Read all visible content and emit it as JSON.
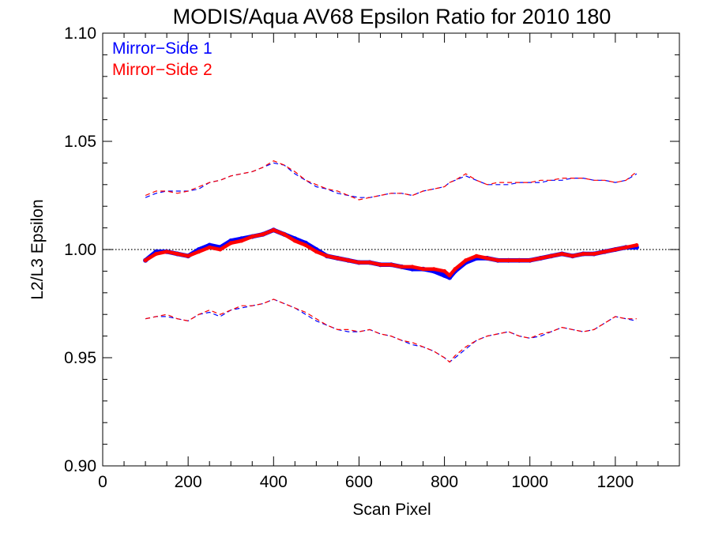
{
  "colors": {
    "mirror_side_1": "#0000ff",
    "mirror_side_2": "#ff0000",
    "axes": "#000000",
    "reference_line": "#000000"
  },
  "chart_data": {
    "type": "line",
    "title": "MODIS/Aqua AV68 Epsilon Ratio for 2010 180",
    "xlabel": "Scan Pixel",
    "ylabel": "L2/L3 Epsilon",
    "xlim": [
      0,
      1350
    ],
    "ylim": [
      0.9,
      1.1
    ],
    "xticks": [
      0,
      200,
      400,
      600,
      800,
      1000,
      1200
    ],
    "xtick_labels": [
      "0",
      "200",
      "400",
      "600",
      "800",
      "1000",
      "1200"
    ],
    "yticks": [
      0.9,
      0.95,
      1.0,
      1.05,
      1.1
    ],
    "ytick_labels": [
      "0.90",
      "0.95",
      "1.00",
      "1.05",
      "1.10"
    ],
    "reference_line": {
      "y": 1.0,
      "style": "dotted"
    },
    "legend": {
      "placement": "top-left",
      "entries": [
        "Mirror−Side 1",
        "Mirror−Side 2"
      ]
    },
    "x": [
      100,
      125,
      150,
      175,
      200,
      225,
      250,
      275,
      300,
      325,
      350,
      375,
      400,
      425,
      450,
      475,
      500,
      525,
      550,
      575,
      600,
      625,
      650,
      675,
      700,
      725,
      750,
      775,
      800,
      812,
      825,
      850,
      875,
      900,
      925,
      950,
      975,
      1000,
      1025,
      1050,
      1075,
      1100,
      1125,
      1150,
      1175,
      1200,
      1225,
      1250
    ],
    "series": [
      {
        "name": "Mirror−Side 1",
        "color": "#0000ff",
        "mean": [
          0.995,
          0.999,
          0.999,
          0.998,
          0.997,
          1.0,
          1.002,
          1.001,
          1.004,
          1.005,
          1.006,
          1.007,
          1.009,
          1.007,
          1.005,
          1.003,
          1.0,
          0.997,
          0.996,
          0.995,
          0.994,
          0.994,
          0.993,
          0.993,
          0.992,
          0.991,
          0.991,
          0.99,
          0.988,
          0.987,
          0.99,
          0.994,
          0.996,
          0.996,
          0.995,
          0.995,
          0.995,
          0.995,
          0.996,
          0.997,
          0.998,
          0.997,
          0.998,
          0.998,
          0.999,
          1.0,
          1.001,
          1.001
        ],
        "upper": [
          1.024,
          1.026,
          1.027,
          1.027,
          1.027,
          1.028,
          1.031,
          1.032,
          1.034,
          1.035,
          1.036,
          1.038,
          1.04,
          1.039,
          1.035,
          1.032,
          1.029,
          1.028,
          1.026,
          1.025,
          1.024,
          1.024,
          1.025,
          1.026,
          1.026,
          1.025,
          1.027,
          1.028,
          1.029,
          1.031,
          1.032,
          1.034,
          1.032,
          1.03,
          1.03,
          1.03,
          1.031,
          1.031,
          1.031,
          1.032,
          1.032,
          1.033,
          1.033,
          1.032,
          1.032,
          1.031,
          1.032,
          1.035
        ],
        "lower": [
          0.968,
          0.969,
          0.969,
          0.968,
          0.967,
          0.97,
          0.971,
          0.969,
          0.972,
          0.973,
          0.974,
          0.975,
          0.977,
          0.975,
          0.973,
          0.97,
          0.967,
          0.965,
          0.963,
          0.962,
          0.962,
          0.963,
          0.961,
          0.96,
          0.958,
          0.956,
          0.955,
          0.953,
          0.95,
          0.948,
          0.95,
          0.954,
          0.958,
          0.96,
          0.961,
          0.962,
          0.96,
          0.959,
          0.96,
          0.962,
          0.964,
          0.963,
          0.962,
          0.963,
          0.966,
          0.969,
          0.968,
          0.967
        ]
      },
      {
        "name": "Mirror−Side 2",
        "color": "#ff0000",
        "mean": [
          0.995,
          0.998,
          0.999,
          0.998,
          0.997,
          0.999,
          1.001,
          1.0,
          1.003,
          1.004,
          1.006,
          1.007,
          1.009,
          1.007,
          1.004,
          1.002,
          0.999,
          0.997,
          0.996,
          0.995,
          0.994,
          0.994,
          0.993,
          0.993,
          0.992,
          0.992,
          0.991,
          0.991,
          0.99,
          0.988,
          0.991,
          0.995,
          0.997,
          0.996,
          0.995,
          0.995,
          0.995,
          0.995,
          0.996,
          0.997,
          0.998,
          0.997,
          0.998,
          0.998,
          0.999,
          1.0,
          1.001,
          1.002
        ],
        "upper": [
          1.025,
          1.027,
          1.027,
          1.026,
          1.027,
          1.029,
          1.031,
          1.032,
          1.034,
          1.035,
          1.036,
          1.038,
          1.041,
          1.039,
          1.036,
          1.032,
          1.03,
          1.028,
          1.027,
          1.025,
          1.023,
          1.024,
          1.025,
          1.026,
          1.026,
          1.025,
          1.027,
          1.028,
          1.029,
          1.031,
          1.032,
          1.035,
          1.032,
          1.03,
          1.031,
          1.031,
          1.031,
          1.031,
          1.032,
          1.032,
          1.033,
          1.033,
          1.033,
          1.032,
          1.032,
          1.031,
          1.032,
          1.036
        ],
        "lower": [
          0.968,
          0.969,
          0.97,
          0.968,
          0.967,
          0.97,
          0.972,
          0.97,
          0.972,
          0.974,
          0.974,
          0.975,
          0.977,
          0.975,
          0.973,
          0.971,
          0.968,
          0.965,
          0.963,
          0.963,
          0.962,
          0.963,
          0.961,
          0.96,
          0.958,
          0.957,
          0.955,
          0.953,
          0.95,
          0.948,
          0.951,
          0.955,
          0.958,
          0.96,
          0.961,
          0.962,
          0.96,
          0.959,
          0.961,
          0.962,
          0.964,
          0.963,
          0.962,
          0.963,
          0.966,
          0.969,
          0.968,
          0.968
        ]
      }
    ]
  }
}
